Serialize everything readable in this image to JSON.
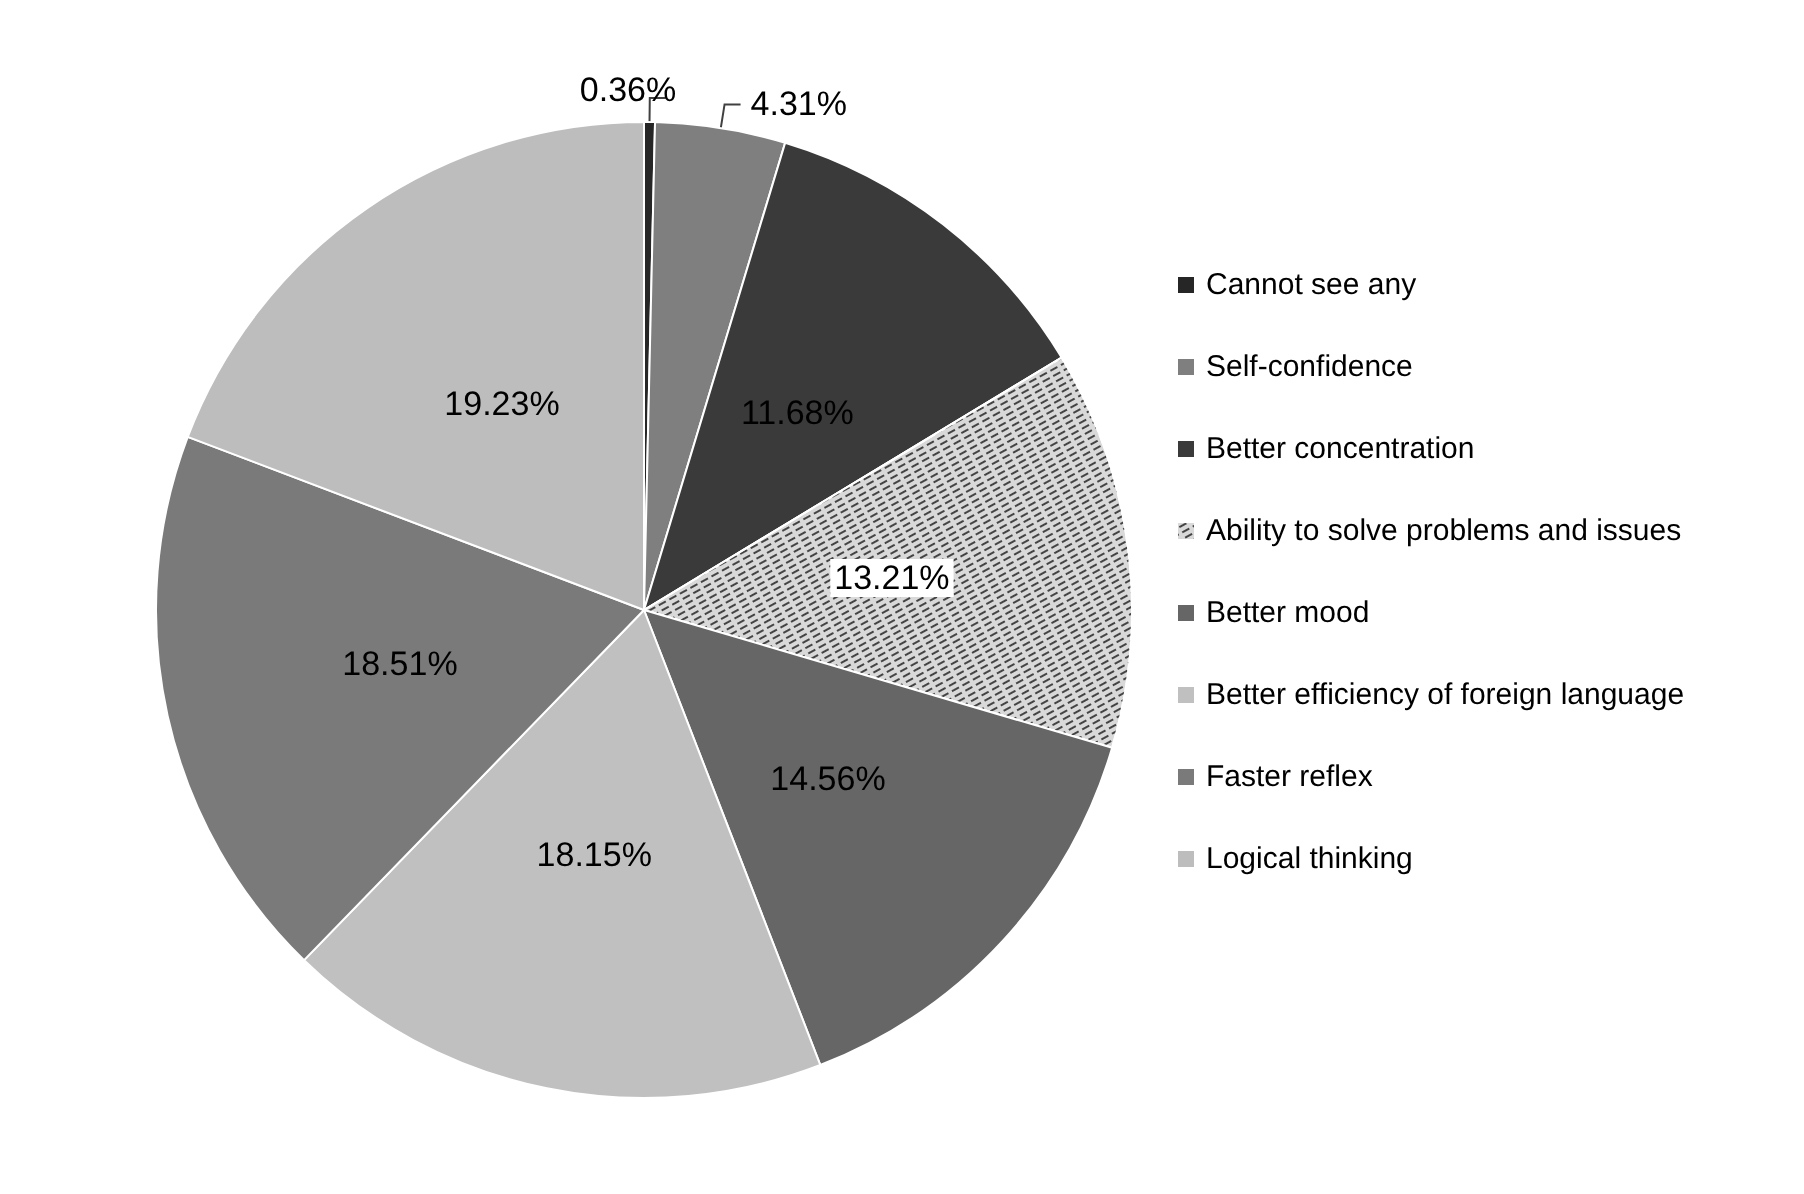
{
  "chart_data": {
    "type": "pie",
    "categories": [
      "Cannot see any",
      "Self-confidence",
      "Better concentration",
      "Ability to solve problems and issues",
      "Better mood",
      "Better efficiency of foreign language",
      "Faster reflex",
      "Logical thinking"
    ],
    "values": [
      0.36,
      4.31,
      11.68,
      13.21,
      14.56,
      18.15,
      18.51,
      19.23
    ],
    "value_labels": [
      "0.36%",
      "4.31%",
      "11.68%",
      "13.21%",
      "14.56%",
      "18.15%",
      "18.51%",
      "19.23%"
    ],
    "colors": [
      "#262626",
      "#7f7f7f",
      "#3a3a3a",
      "#d9d9d9",
      "#666666",
      "#c0c0c0",
      "#7a7a7a",
      "#bdbdbd"
    ],
    "legend": "right"
  }
}
